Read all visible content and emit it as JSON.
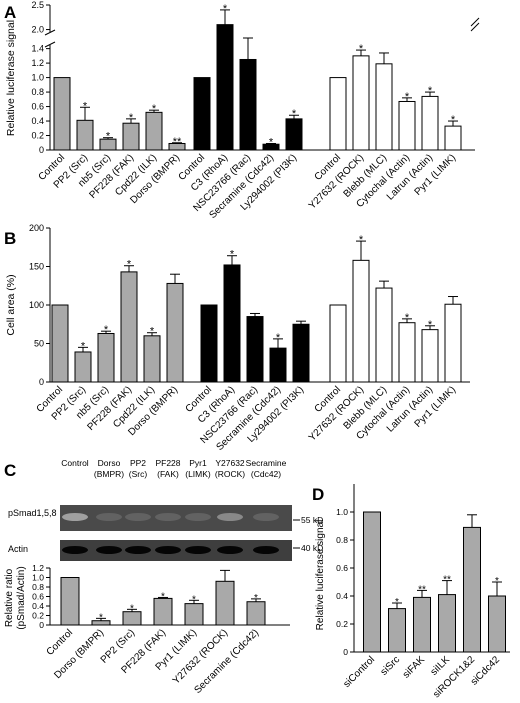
{
  "colors": {
    "gray": "#a9a9a9",
    "black": "#000000",
    "white": "#ffffff"
  },
  "panels": {
    "A": "A",
    "B": "B",
    "C": "C",
    "D": "D"
  },
  "blot": {
    "lanes": [
      "Control",
      "Dorso\n(BMPR)",
      "PP2\n(Src)",
      "PF228\n(FAK)",
      "Pyr1\n(LIMK)",
      "Y27632\n(ROCK)",
      "Secramine\n(Cdc42)"
    ],
    "rows": [
      "pSmad1,5,8",
      "Actin"
    ],
    "markers": [
      "55 kD",
      "40 kD"
    ]
  },
  "chart_data": [
    {
      "panel": "A",
      "type": "bar",
      "ylabel": "Relative luciferase signal",
      "ylim": [
        0,
        2.5
      ],
      "axis_break": [
        1.45,
        1.95
      ],
      "yticks_lower": [
        "0",
        "0.2",
        "0.4",
        "0.6",
        "0.8",
        "1.0",
        "1.2",
        "1.4"
      ],
      "yticks_upper": [
        "2.0",
        "2.5"
      ],
      "groups": [
        {
          "fill": "gray",
          "categories": [
            "Control",
            "PP2 (Src)",
            "nb5 (Src)",
            "PF228 (FAK)",
            "Cpd22 (ILK)",
            "Dorso (BMPR)"
          ],
          "values": [
            1.0,
            0.41,
            0.15,
            0.37,
            0.52,
            0.09
          ],
          "errors": [
            0,
            0.18,
            0.02,
            0.06,
            0.03,
            0.01
          ],
          "sig": [
            "",
            "*",
            "*",
            "*",
            "*",
            "**"
          ]
        },
        {
          "fill": "black",
          "categories": [
            "Control",
            "C3 (RhoA)",
            "NSC23766 (Rac)",
            "Secramine (Cdc42)",
            "Ly294002 (PI3K)"
          ],
          "values": [
            1.0,
            2.1,
            1.25,
            0.08,
            0.43
          ],
          "errors": [
            0,
            0.3,
            0.23,
            0.01,
            0.05
          ],
          "sig": [
            "",
            "*",
            "",
            "*",
            "*"
          ]
        },
        {
          "fill": "white",
          "categories": [
            "Control",
            "Y27632 (ROCK)",
            "Blebb (MLC)",
            "Cytochal (Actin)",
            "Latrun (Actin)",
            "Pyr1 (LIMK)"
          ],
          "values": [
            1.0,
            1.3,
            1.19,
            0.67,
            0.74,
            0.33
          ],
          "errors": [
            0,
            0.08,
            0.15,
            0.05,
            0.06,
            0.07
          ],
          "sig": [
            "",
            "*",
            "",
            "*",
            "*",
            "*"
          ]
        }
      ]
    },
    {
      "panel": "B",
      "type": "bar",
      "ylabel": "Cell area (%)",
      "ylim": [
        0,
        200
      ],
      "yticks": [
        "0",
        "50",
        "100",
        "150",
        "200"
      ],
      "groups": [
        {
          "fill": "gray",
          "categories": [
            "Control",
            "PP2 (Src)",
            "nb5 (Src)",
            "PF228 (FAK)",
            "Cpd22 (ILK)",
            "Dorso (BMPR)"
          ],
          "values": [
            100,
            39,
            63,
            143,
            60,
            128
          ],
          "errors": [
            0,
            6,
            3,
            8,
            4,
            12
          ],
          "sig": [
            "",
            "*",
            "*",
            "*",
            "*",
            ""
          ]
        },
        {
          "fill": "black",
          "categories": [
            "Control",
            "C3 (RhoA)",
            "NSC23766 (Rac)",
            "Secramine (Cdc42)",
            "Ly294002 (PI3K)"
          ],
          "values": [
            100,
            152,
            85,
            44,
            75
          ],
          "errors": [
            0,
            12,
            4,
            12,
            4
          ],
          "sig": [
            "",
            "*",
            "",
            "*",
            ""
          ]
        },
        {
          "fill": "white",
          "categories": [
            "Control",
            "Y27632 (ROCK)",
            "Blebb (MLC)",
            "Cytochal (Actin)",
            "Latrun (Actin)",
            "Pyr1 (LIMK)"
          ],
          "values": [
            100,
            158,
            122,
            77,
            68,
            101
          ],
          "errors": [
            0,
            25,
            9,
            5,
            5,
            10
          ],
          "sig": [
            "",
            "*",
            "",
            "*",
            "*",
            ""
          ]
        }
      ]
    },
    {
      "panel": "C",
      "type": "bar",
      "ylabel": "Relative ratio\n(pSmad/Actin)",
      "ylim": [
        0,
        1.2
      ],
      "yticks": [
        "0",
        "0.2",
        "0.4",
        "0.6",
        "0.8",
        "1.0",
        "1.2"
      ],
      "fill": "gray",
      "categories": [
        "Control",
        "Dorso (BMPR)",
        "PP2 (Src)",
        "PF228 (FAK)",
        "Pyr1 (LIMK)",
        "Y27632 (ROCK)",
        "Secramine (Cdc42)"
      ],
      "values": [
        1.0,
        0.09,
        0.28,
        0.56,
        0.45,
        0.92,
        0.49
      ],
      "errors": [
        0,
        0.05,
        0.05,
        0.02,
        0.07,
        0.23,
        0.06
      ],
      "sig": [
        "",
        "*",
        "*",
        "*",
        "*",
        "",
        "*"
      ]
    },
    {
      "panel": "D",
      "type": "bar",
      "ylabel": "Relative luciferase signal",
      "ylim": [
        0,
        1.2
      ],
      "yticks": [
        "0",
        "0.2",
        "0.4",
        "0.6",
        "0.8",
        "1.0"
      ],
      "fill": "gray",
      "categories": [
        "siControl",
        "siSrc",
        "siFAK",
        "siILK",
        "siROCK1&2",
        "siCdc42"
      ],
      "values": [
        1.0,
        0.31,
        0.39,
        0.41,
        0.89,
        0.4
      ],
      "errors": [
        0,
        0.04,
        0.05,
        0.1,
        0.09,
        0.1
      ],
      "sig": [
        "",
        "*",
        "**",
        "**",
        "",
        "*"
      ]
    }
  ]
}
